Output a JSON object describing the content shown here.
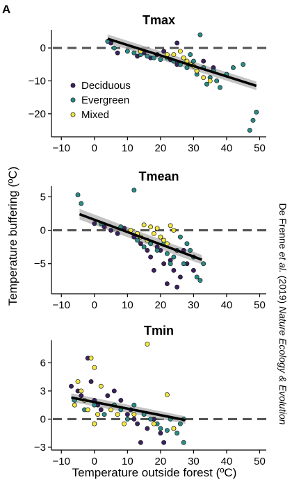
{
  "figure": {
    "panel_letter": "A",
    "shared_ylabel": "Temperature buffering (ºC)",
    "shared_xlabel": "Temperature outside forest (ºC)",
    "side_credit": "De Frenne et al. (2019) Nature Ecology & Evolution"
  },
  "colors": {
    "Deciduous": "#3b2160",
    "Evergreen": "#2a8c86",
    "Mixed": "#f2e640",
    "trend_line": "#000000",
    "confidence_band": "#b0b0b0",
    "zero_line": "#555555"
  },
  "chart_data": [
    {
      "type": "scatter",
      "title": "Tmax",
      "xlim": [
        -13,
        52
      ],
      "ylim": [
        -27,
        5.5
      ],
      "xticks": [
        -10,
        0,
        10,
        20,
        30,
        40,
        50
      ],
      "yticks": [
        0,
        -10,
        -20
      ],
      "legend": [
        "Deciduous",
        "Evergreen",
        "Mixed"
      ],
      "legend_position": "bottom-left",
      "reference_line_y": 0,
      "trend": {
        "x": [
          4,
          49
        ],
        "y": [
          2.8,
          -11.5
        ],
        "band": [
          1.3,
          1.3
        ]
      },
      "series": [
        {
          "name": "Deciduous",
          "points": [
            [
              5,
              1.5
            ],
            [
              7,
              -1.5
            ],
            [
              13,
              -2.5
            ],
            [
              15,
              -1.5
            ],
            [
              17,
              -3
            ],
            [
              19,
              -2
            ],
            [
              21,
              -1
            ],
            [
              23,
              -3.5
            ],
            [
              25,
              -5
            ],
            [
              25,
              1.5
            ],
            [
              27,
              -3
            ],
            [
              29,
              -5
            ],
            [
              31,
              -7
            ],
            [
              33,
              -4
            ],
            [
              36,
              -6
            ]
          ]
        },
        {
          "name": "Evergreen",
          "points": [
            [
              4,
              2
            ],
            [
              6,
              0
            ],
            [
              10,
              -1
            ],
            [
              12,
              -1.5
            ],
            [
              14,
              -2
            ],
            [
              16,
              -2.5
            ],
            [
              18,
              -3
            ],
            [
              20,
              -3.5
            ],
            [
              22,
              -3
            ],
            [
              24,
              -4
            ],
            [
              26,
              -5
            ],
            [
              28,
              -6
            ],
            [
              29,
              -2
            ],
            [
              30,
              -4
            ],
            [
              31,
              -8
            ],
            [
              32,
              4
            ],
            [
              33,
              -6
            ],
            [
              34,
              -11
            ],
            [
              35,
              -9
            ],
            [
              36,
              -7
            ],
            [
              37,
              -10
            ],
            [
              38,
              -12
            ],
            [
              40,
              -8
            ],
            [
              42,
              -6
            ],
            [
              45,
              -5
            ],
            [
              47,
              -25
            ],
            [
              48,
              -22
            ],
            [
              49,
              -19.5
            ]
          ]
        },
        {
          "name": "Mixed",
          "points": [
            [
              14,
              -1
            ],
            [
              22,
              -2
            ],
            [
              24,
              -2
            ],
            [
              26,
              -1
            ],
            [
              27,
              -3
            ],
            [
              28,
              -4
            ],
            [
              29,
              -5
            ],
            [
              30,
              -5.5
            ],
            [
              31,
              -7
            ],
            [
              33,
              -9
            ],
            [
              35,
              -10
            ]
          ]
        }
      ]
    },
    {
      "type": "scatter",
      "title": "Tmean",
      "xlim": [
        -13,
        52
      ],
      "ylim": [
        -9.5,
        6.6
      ],
      "xticks": [
        -10,
        0,
        10,
        20,
        30,
        40,
        50
      ],
      "yticks": [
        5,
        0,
        -5
      ],
      "reference_line_y": 0,
      "trend": {
        "x": [
          -4.5,
          32.5
        ],
        "y": [
          2.4,
          -4.4
        ],
        "band": [
          0.8,
          0.7
        ]
      },
      "series": [
        {
          "name": "Deciduous",
          "points": [
            [
              0,
              1
            ],
            [
              3,
              0.5
            ],
            [
              5,
              0
            ],
            [
              7,
              -0.5
            ],
            [
              9,
              0.3
            ],
            [
              12,
              -1
            ],
            [
              14,
              -2
            ],
            [
              16,
              -3
            ],
            [
              17,
              -4
            ],
            [
              18,
              -6
            ],
            [
              19,
              -2.5
            ],
            [
              20,
              -3
            ],
            [
              21,
              -5
            ],
            [
              22,
              -8
            ],
            [
              23,
              -4.5
            ],
            [
              24,
              -6
            ],
            [
              25,
              -8.5
            ],
            [
              26,
              -7
            ],
            [
              27,
              -3
            ],
            [
              28,
              -5
            ],
            [
              30,
              -6
            ]
          ]
        },
        {
          "name": "Evergreen",
          "points": [
            [
              -5,
              5.3
            ],
            [
              -4,
              4
            ],
            [
              2,
              1
            ],
            [
              8,
              0.5
            ],
            [
              12,
              6
            ],
            [
              13,
              -1.5
            ],
            [
              15,
              -2.5
            ],
            [
              17,
              -2
            ],
            [
              19,
              -3
            ],
            [
              20,
              -1
            ],
            [
              21,
              -2
            ],
            [
              22,
              -3.5
            ],
            [
              23,
              -5
            ],
            [
              24,
              -4
            ],
            [
              25,
              -3
            ],
            [
              26,
              -1
            ],
            [
              27,
              -5
            ],
            [
              28,
              -2
            ],
            [
              29,
              -3
            ],
            [
              30,
              -4
            ],
            [
              31,
              -7
            ],
            [
              32,
              -7.5
            ],
            [
              33,
              -5
            ]
          ]
        },
        {
          "name": "Mixed",
          "points": [
            [
              11,
              0
            ],
            [
              13,
              -0.5
            ],
            [
              14,
              -1
            ],
            [
              15,
              0.8
            ],
            [
              16,
              -1.5
            ],
            [
              17,
              0.5
            ],
            [
              18,
              -0.5
            ],
            [
              19,
              0.3
            ],
            [
              20,
              -1
            ],
            [
              21,
              -1.5
            ],
            [
              22,
              -2
            ],
            [
              23,
              0.7
            ],
            [
              24,
              0
            ]
          ]
        }
      ]
    },
    {
      "type": "scatter",
      "title": "Tmin",
      "xlim": [
        -13,
        52
      ],
      "ylim": [
        -3.3,
        8.4
      ],
      "xticks": [
        -10,
        0,
        10,
        20,
        30,
        40,
        50
      ],
      "yticks": [
        6,
        3,
        0,
        -3
      ],
      "reference_line_y": 0,
      "trend": {
        "x": [
          -7,
          27.5
        ],
        "y": [
          2.3,
          -0.1
        ],
        "band": [
          0.45,
          0.4
        ]
      },
      "series": [
        {
          "name": "Deciduous",
          "points": [
            [
              -7,
              3.5
            ],
            [
              -5,
              3
            ],
            [
              -4,
              2.5
            ],
            [
              -2,
              6.5
            ],
            [
              -1,
              4
            ],
            [
              0,
              2
            ],
            [
              0,
              -0.5
            ],
            [
              1,
              1.5
            ],
            [
              2,
              1
            ],
            [
              4,
              2.5
            ],
            [
              6,
              3
            ],
            [
              8,
              2
            ],
            [
              10,
              0.5
            ],
            [
              11,
              1
            ],
            [
              12,
              0
            ],
            [
              13,
              -0.5
            ],
            [
              14,
              -2.5
            ],
            [
              16,
              -1
            ],
            [
              18,
              0
            ],
            [
              20,
              -1.5
            ],
            [
              21,
              -2.5
            ]
          ]
        },
        {
          "name": "Evergreen",
          "points": [
            [
              -6,
              2
            ],
            [
              -3,
              1
            ],
            [
              0,
              1.5
            ],
            [
              3,
              0.5
            ],
            [
              6,
              1.5
            ],
            [
              8,
              1
            ],
            [
              10,
              0
            ],
            [
              12,
              1.5
            ],
            [
              15,
              0.5
            ],
            [
              17,
              0
            ],
            [
              19,
              -0.5
            ],
            [
              20,
              -1
            ],
            [
              22,
              -1.2
            ],
            [
              23,
              0
            ],
            [
              24,
              -1
            ],
            [
              25,
              -1.5
            ],
            [
              26,
              -0.5
            ],
            [
              27,
              -2.5
            ],
            [
              27,
              0
            ]
          ]
        },
        {
          "name": "Mixed",
          "points": [
            [
              -6,
              1.5
            ],
            [
              -5,
              4
            ],
            [
              -4,
              3
            ],
            [
              -3,
              2
            ],
            [
              -2,
              1
            ],
            [
              -1,
              6.5
            ],
            [
              0,
              5.5
            ],
            [
              0,
              -0.5
            ],
            [
              1,
              0.5
            ],
            [
              2,
              3.5
            ],
            [
              5,
              1
            ],
            [
              7,
              0.5
            ],
            [
              9,
              -0.5
            ],
            [
              12,
              0.5
            ],
            [
              16,
              8
            ],
            [
              18,
              -0.5
            ],
            [
              22,
              2.6
            ],
            [
              24,
              -1
            ]
          ]
        }
      ]
    }
  ]
}
